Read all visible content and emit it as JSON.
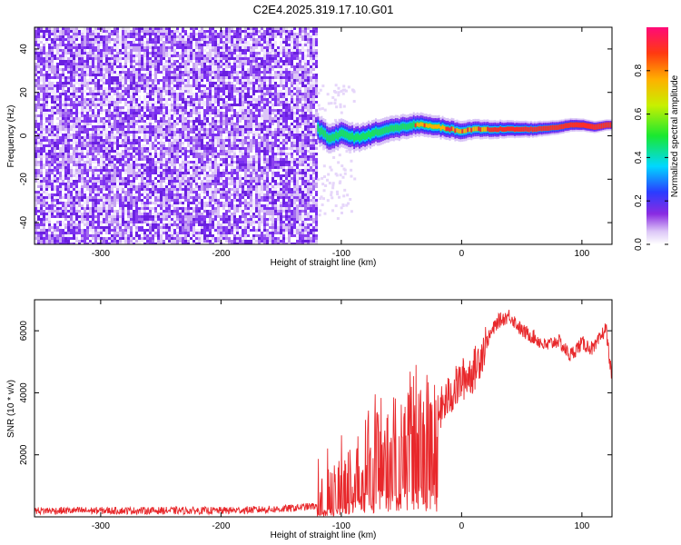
{
  "title": "C2E4.2025.319.17.10.G01",
  "colors": {
    "snr_line": "#e8282b",
    "spectrum_ridge": "#ff2a2a",
    "noise": "#7b2ff2",
    "axis": "#000000"
  },
  "chart_data": [
    {
      "type": "heatmap",
      "name": "spectrogram",
      "xlabel": "Height of straight line (km)",
      "ylabel": "Frequency (Hz)",
      "xlim": [
        -355,
        125
      ],
      "ylim": [
        -50,
        50
      ],
      "x_ticks": [
        -300,
        -200,
        -100,
        0,
        100
      ],
      "y_ticks": [
        -40,
        -20,
        0,
        20,
        40
      ],
      "noise_region_end_km": -120,
      "signal_ridge": {
        "x": [
          -120,
          -110,
          -100,
          -90,
          -80,
          -70,
          -60,
          -50,
          -40,
          -30,
          -20,
          -10,
          0,
          10,
          20,
          40,
          60,
          80,
          90,
          100,
          110,
          120
        ],
        "frequency_hz": [
          3,
          -1,
          1,
          -1,
          0,
          2,
          3,
          4,
          5,
          5,
          4,
          3,
          2,
          3,
          3,
          3,
          3,
          4,
          5,
          5,
          4,
          5
        ]
      },
      "colorbar": {
        "label": "Normalized spectral amplitude",
        "range": [
          0,
          1
        ],
        "ticks": [
          "0.0",
          "0.2",
          "0.4",
          "0.6",
          "0.8"
        ]
      }
    },
    {
      "type": "line",
      "name": "snr",
      "xlabel": "Height of straight line (km)",
      "ylabel": "SNR (10 * v/v)",
      "xlim": [
        -355,
        125
      ],
      "ylim": [
        0,
        7000
      ],
      "x_ticks": [
        -300,
        -200,
        -100,
        0,
        100
      ],
      "y_ticks": [
        2000,
        4000,
        6000
      ],
      "series": [
        {
          "name": "SNR",
          "x": [
            -355,
            -300,
            -250,
            -200,
            -150,
            -120,
            -110,
            -100,
            -90,
            -80,
            -70,
            -60,
            -50,
            -40,
            -30,
            -20,
            -10,
            0,
            10,
            20,
            30,
            40,
            50,
            60,
            70,
            80,
            90,
            100,
            110,
            120,
            125
          ],
          "y": [
            200,
            200,
            200,
            200,
            250,
            350,
            800,
            1200,
            1600,
            2100,
            2500,
            2600,
            3000,
            3200,
            3100,
            3300,
            3900,
            4400,
            4700,
            5600,
            6300,
            6500,
            6000,
            5800,
            5500,
            5700,
            5200,
            5600,
            5400,
            6100,
            4400
          ]
        }
      ]
    }
  ]
}
